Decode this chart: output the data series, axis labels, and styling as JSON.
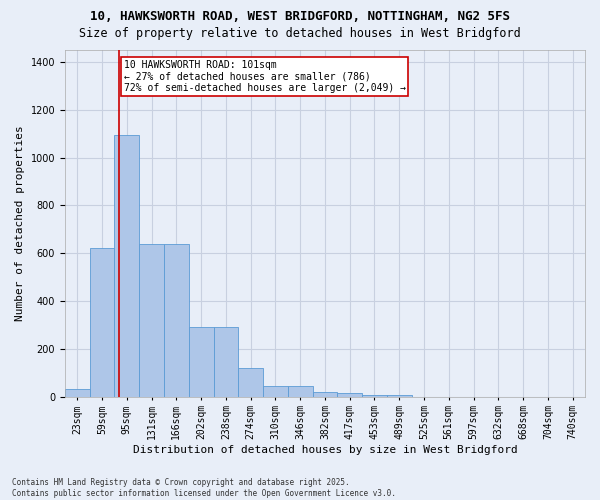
{
  "title_line1": "10, HAWKSWORTH ROAD, WEST BRIDGFORD, NOTTINGHAM, NG2 5FS",
  "title_line2": "Size of property relative to detached houses in West Bridgford",
  "xlabel": "Distribution of detached houses by size in West Bridgford",
  "ylabel": "Number of detached properties",
  "categories": [
    "23sqm",
    "59sqm",
    "95sqm",
    "131sqm",
    "166sqm",
    "202sqm",
    "238sqm",
    "274sqm",
    "310sqm",
    "346sqm",
    "382sqm",
    "417sqm",
    "453sqm",
    "489sqm",
    "525sqm",
    "561sqm",
    "597sqm",
    "632sqm",
    "668sqm",
    "704sqm",
    "740sqm"
  ],
  "values": [
    30,
    620,
    1095,
    640,
    640,
    290,
    290,
    120,
    45,
    45,
    20,
    15,
    5,
    5,
    0,
    0,
    0,
    0,
    0,
    0,
    0
  ],
  "bar_color": "#aec6e8",
  "bar_edge_color": "#5b9bd5",
  "property_line_label": "10 HAWKSWORTH ROAD: 101sqm",
  "annotation_line2": "← 27% of detached houses are smaller (786)",
  "annotation_line3": "72% of semi-detached houses are larger (2,049) →",
  "annotation_box_color": "#ffffff",
  "annotation_box_edge_color": "#cc0000",
  "vline_color": "#cc0000",
  "vline_x": 1.667,
  "ylim": [
    0,
    1450
  ],
  "yticks": [
    0,
    200,
    400,
    600,
    800,
    1000,
    1200,
    1400
  ],
  "grid_color": "#c8d0e0",
  "bg_color": "#e8eef8",
  "footer_line1": "Contains HM Land Registry data © Crown copyright and database right 2025.",
  "footer_line2": "Contains public sector information licensed under the Open Government Licence v3.0.",
  "title_fontsize": 9,
  "subtitle_fontsize": 8.5,
  "axis_label_fontsize": 8,
  "tick_fontsize": 7,
  "annotation_fontsize": 7,
  "footer_fontsize": 5.5
}
